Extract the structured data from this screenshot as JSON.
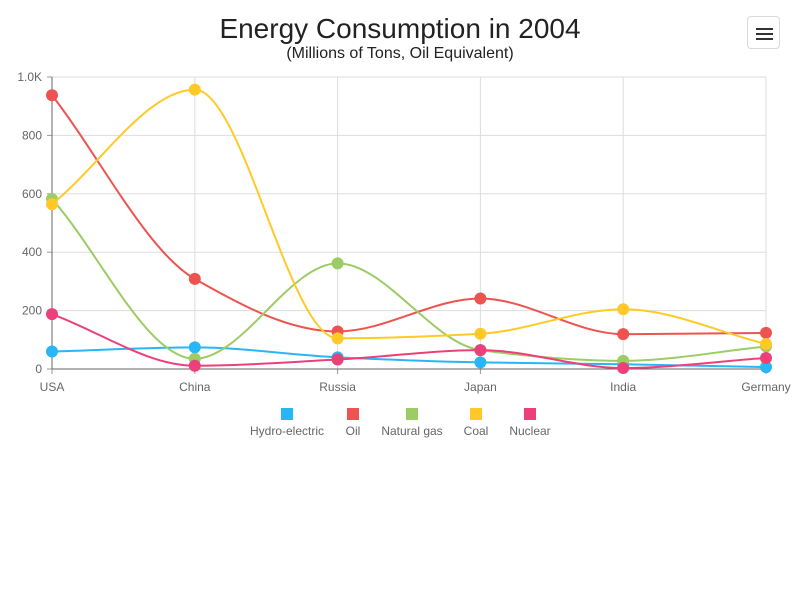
{
  "chart_data": {
    "type": "line",
    "title": "Energy Consumption in 2004",
    "subtitle": "(Millions of Tons, Oil Equivalent)",
    "xlabel": "",
    "ylabel": "",
    "categories": [
      "USA",
      "China",
      "Russia",
      "Japan",
      "India",
      "Germany"
    ],
    "ylim": [
      0,
      1000
    ],
    "y_ticks": [
      0,
      200,
      400,
      600,
      800,
      1000
    ],
    "y_tick_labels": [
      "0",
      "200",
      "400",
      "600",
      "800",
      "1.0K"
    ],
    "grid": true,
    "smooth": true,
    "legend_position": "bottom",
    "series": [
      {
        "name": "Hydro-electric",
        "color": "#29b6f6",
        "values": [
          59.8,
          74.2,
          40,
          22.6,
          16.2,
          6.5
        ]
      },
      {
        "name": "Oil",
        "color": "#ef5350",
        "values": [
          937.6,
          308.6,
          128.5,
          241.5,
          119.3,
          123.6
        ]
      },
      {
        "name": "Natural gas",
        "color": "#9ccc65",
        "values": [
          582,
          35.1,
          361.8,
          64.8,
          27.9,
          77.3
        ]
      },
      {
        "name": "Coal",
        "color": "#ffca28",
        "values": [
          564.3,
          956.9,
          105,
          120.8,
          204.8,
          85.7
        ]
      },
      {
        "name": "Nuclear",
        "color": "#ec407a",
        "values": [
          187.9,
          11.3,
          32.4,
          64.8,
          3.4,
          37.8
        ]
      }
    ]
  },
  "toolbar": {
    "menu_icon": "hamburger-icon"
  }
}
